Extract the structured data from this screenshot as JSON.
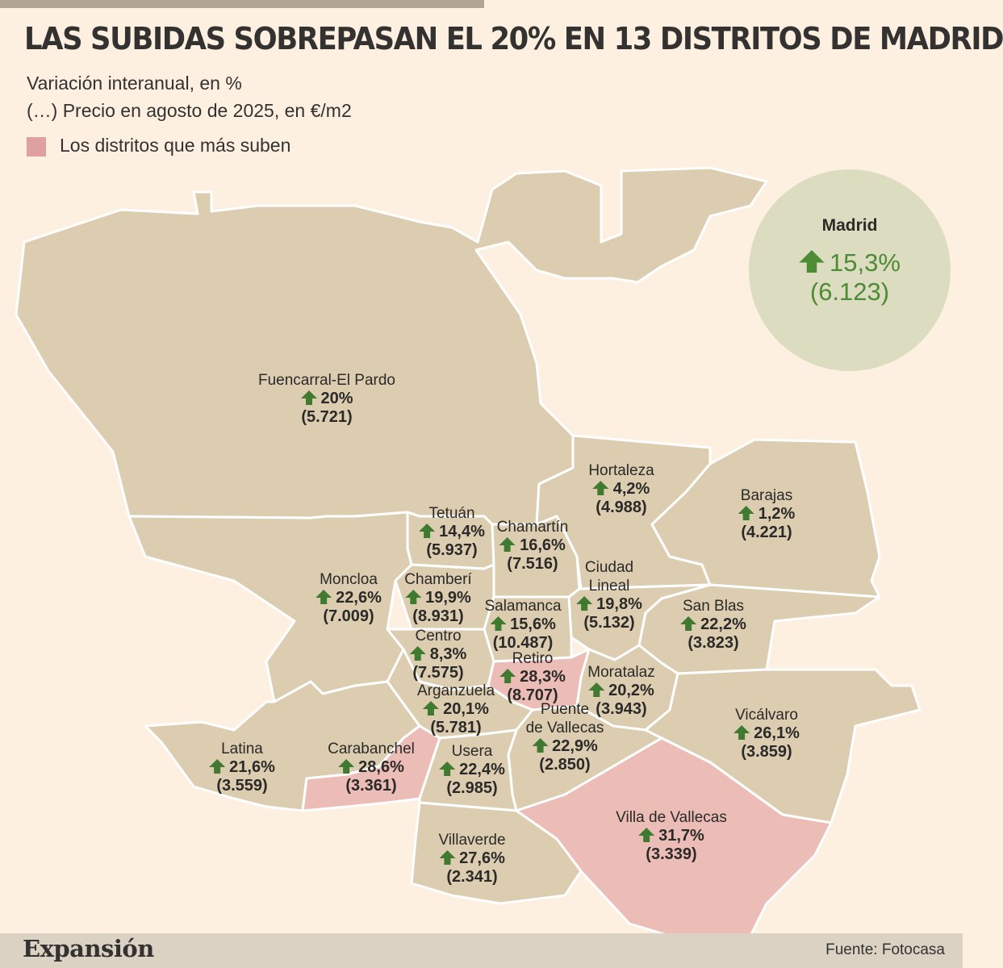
{
  "title": "LAS SUBIDAS SOBREPASAN EL 20% EN 13 DISTRITOS DE MADRID",
  "subtitle_1": "Variación interanual, en %",
  "subtitle_2": "(…) Precio en agosto de 2025, en €/m2",
  "legend": {
    "label": "Los distritos que más suben",
    "color": "#e0a0a0"
  },
  "colors": {
    "base": "#dccdb1",
    "highlight": "#ecbdb6",
    "arrow": "#3f7a30",
    "madrid_text": "#4d8b35"
  },
  "madrid": {
    "name": "Madrid",
    "change": "15,3%",
    "price": "(6.123)"
  },
  "districts": [
    {
      "name": "Fuencarral-El Pardo",
      "change": "20%",
      "price": "(5.721)",
      "highlight": false
    },
    {
      "name": "Hortaleza",
      "change": "4,2%",
      "price": "(4.988)",
      "highlight": false
    },
    {
      "name": "Barajas",
      "change": "1,2%",
      "price": "(4.221)",
      "highlight": false
    },
    {
      "name": "Tetuán",
      "change": "14,4%",
      "price": "(5.937)",
      "highlight": false
    },
    {
      "name": "Chamartín",
      "change": "16,6%",
      "price": "(7.516)",
      "highlight": false
    },
    {
      "name": "Ciudad Lineal",
      "change": "19,8%",
      "price": "(5.132)",
      "highlight": false
    },
    {
      "name": "Moncloa",
      "change": "22,6%",
      "price": "(7.009)",
      "highlight": false
    },
    {
      "name": "Chamberí",
      "change": "19,9%",
      "price": "(8.931)",
      "highlight": false
    },
    {
      "name": "Salamanca",
      "change": "15,6%",
      "price": "(10.487)",
      "highlight": false
    },
    {
      "name": "San Blas",
      "change": "22,2%",
      "price": "(3.823)",
      "highlight": false
    },
    {
      "name": "Centro",
      "change": "8,3%",
      "price": "(7.575)",
      "highlight": false
    },
    {
      "name": "Retiro",
      "change": "28,3%",
      "price": "(8.707)",
      "highlight": true
    },
    {
      "name": "Moratalaz",
      "change": "20,2%",
      "price": "(3.943)",
      "highlight": false
    },
    {
      "name": "Arganzuela",
      "change": "20,1%",
      "price": "(5.781)",
      "highlight": false
    },
    {
      "name": "Vicálvaro",
      "change": "26,1%",
      "price": "(3.859)",
      "highlight": false
    },
    {
      "name": "Puente de Vallecas",
      "change": "22,9%",
      "price": "(2.850)",
      "highlight": false
    },
    {
      "name": "Latina",
      "change": "21,6%",
      "price": "(3.559)",
      "highlight": false
    },
    {
      "name": "Carabanchel",
      "change": "28,6%",
      "price": "(3.361)",
      "highlight": true
    },
    {
      "name": "Usera",
      "change": "22,4%",
      "price": "(2.985)",
      "highlight": false
    },
    {
      "name": "Villa de Vallecas",
      "change": "31,7%",
      "price": "(3.339)",
      "highlight": true
    },
    {
      "name": "Villaverde",
      "change": "27,6%",
      "price": "(2.341)",
      "highlight": false
    }
  ],
  "footer": {
    "brand": "Expansión",
    "source": "Fuente: Fotocasa"
  }
}
